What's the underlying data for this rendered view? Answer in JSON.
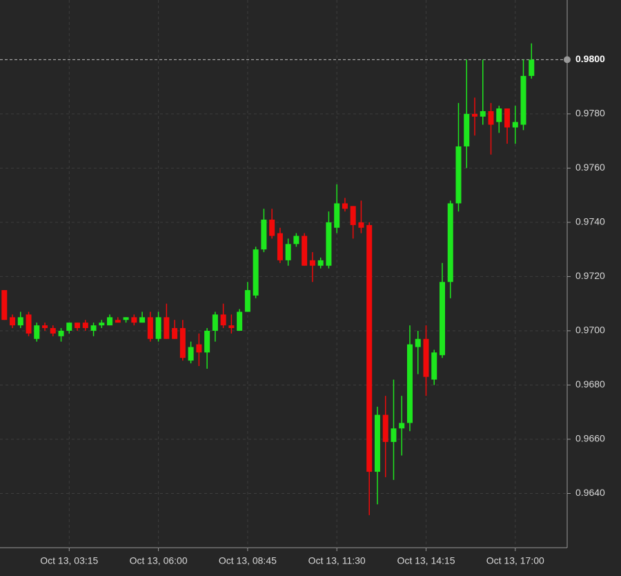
{
  "chart_data": {
    "type": "candlestick",
    "x": [
      "Oct 13, 01:15",
      "Oct 13, 01:30",
      "Oct 13, 01:45",
      "Oct 13, 02:00",
      "Oct 13, 02:15",
      "Oct 13, 02:30",
      "Oct 13, 02:45",
      "Oct 13, 03:00",
      "Oct 13, 03:15",
      "Oct 13, 03:30",
      "Oct 13, 03:45",
      "Oct 13, 04:00",
      "Oct 13, 04:15",
      "Oct 13, 04:30",
      "Oct 13, 04:45",
      "Oct 13, 05:00",
      "Oct 13, 05:15",
      "Oct 13, 05:30",
      "Oct 13, 05:45",
      "Oct 13, 06:00",
      "Oct 13, 06:15",
      "Oct 13, 06:30",
      "Oct 13, 06:45",
      "Oct 13, 07:00",
      "Oct 13, 07:15",
      "Oct 13, 07:30",
      "Oct 13, 07:45",
      "Oct 13, 08:00",
      "Oct 13, 08:15",
      "Oct 13, 08:30",
      "Oct 13, 08:45",
      "Oct 13, 09:00",
      "Oct 13, 09:15",
      "Oct 13, 09:30",
      "Oct 13, 09:45",
      "Oct 13, 10:00",
      "Oct 13, 10:15",
      "Oct 13, 10:30",
      "Oct 13, 10:45",
      "Oct 13, 11:00",
      "Oct 13, 11:15",
      "Oct 13, 11:30",
      "Oct 13, 11:45",
      "Oct 13, 12:00",
      "Oct 13, 12:15",
      "Oct 13, 12:30",
      "Oct 13, 12:45",
      "Oct 13, 13:00",
      "Oct 13, 13:15",
      "Oct 13, 13:30",
      "Oct 13, 13:45",
      "Oct 13, 14:00",
      "Oct 13, 14:15",
      "Oct 13, 14:30",
      "Oct 13, 14:45",
      "Oct 13, 15:00",
      "Oct 13, 15:15",
      "Oct 13, 15:30",
      "Oct 13, 15:45",
      "Oct 13, 16:00",
      "Oct 13, 16:15",
      "Oct 13, 16:30",
      "Oct 13, 16:45",
      "Oct 13, 17:00",
      "Oct 13, 17:15",
      "Oct 13, 17:30"
    ],
    "open": [
      0.9715,
      0.9705,
      0.9702,
      0.9706,
      0.9697,
      0.9702,
      0.9701,
      0.9698,
      0.97,
      0.9703,
      0.9703,
      0.97,
      0.9702,
      0.9702,
      0.9704,
      0.9704,
      0.9705,
      0.9703,
      0.9705,
      0.9697,
      0.9705,
      0.9701,
      0.9701,
      0.9689,
      0.9695,
      0.9692,
      0.97,
      0.9706,
      0.9702,
      0.97,
      0.9707,
      0.9713,
      0.973,
      0.9741,
      0.9736,
      0.9726,
      0.9732,
      0.9735,
      0.9726,
      0.9724,
      0.9724,
      0.9738,
      0.9747,
      0.9746,
      0.974,
      0.9739,
      0.9648,
      0.9669,
      0.9659,
      0.9664,
      0.9666,
      0.9694,
      0.9697,
      0.9682,
      0.9691,
      0.9718,
      0.9747,
      0.9768,
      0.978,
      0.9779,
      0.9781,
      0.9777,
      0.9782,
      0.9775,
      0.9776,
      0.9794
    ],
    "high": [
      0.9715,
      0.9706,
      0.9707,
      0.9707,
      0.9703,
      0.9703,
      0.9702,
      0.9701,
      0.9703,
      0.9703,
      0.9704,
      0.9703,
      0.9704,
      0.9706,
      0.9705,
      0.9705,
      0.9706,
      0.9707,
      0.9707,
      0.9707,
      0.971,
      0.9704,
      0.9704,
      0.9696,
      0.9699,
      0.9701,
      0.9707,
      0.971,
      0.9706,
      0.9708,
      0.9718,
      0.9731,
      0.9745,
      0.9745,
      0.9738,
      0.9734,
      0.9736,
      0.9736,
      0.9729,
      0.9727,
      0.9744,
      0.9754,
      0.9749,
      0.9746,
      0.9748,
      0.974,
      0.9672,
      0.9676,
      0.9682,
      0.9676,
      0.9702,
      0.97,
      0.9702,
      0.9693,
      0.9725,
      0.9748,
      0.9784,
      0.98,
      0.9786,
      0.98,
      0.9784,
      0.9783,
      0.9782,
      0.9783,
      0.98,
      0.9806
    ],
    "low": [
      0.9704,
      0.9701,
      0.9701,
      0.9698,
      0.9696,
      0.97,
      0.9698,
      0.9696,
      0.9699,
      0.97,
      0.97,
      0.9698,
      0.9701,
      0.9702,
      0.9703,
      0.9703,
      0.9702,
      0.9703,
      0.9696,
      0.9696,
      0.9697,
      0.9697,
      0.9689,
      0.9688,
      0.9687,
      0.9686,
      0.9696,
      0.9701,
      0.9699,
      0.97,
      0.9707,
      0.9712,
      0.9729,
      0.9734,
      0.9725,
      0.9724,
      0.9731,
      0.9724,
      0.9718,
      0.9723,
      0.9723,
      0.9736,
      0.9744,
      0.9734,
      0.9736,
      0.9632,
      0.9636,
      0.9646,
      0.9645,
      0.9654,
      0.9663,
      0.9684,
      0.9676,
      0.968,
      0.969,
      0.9712,
      0.9744,
      0.976,
      0.9772,
      0.9776,
      0.9765,
      0.9773,
      0.9769,
      0.9769,
      0.9774,
      0.9793
    ],
    "close": [
      0.9704,
      0.9702,
      0.9705,
      0.9699,
      0.9702,
      0.9701,
      0.9699,
      0.97,
      0.9703,
      0.9701,
      0.9701,
      0.9702,
      0.9703,
      0.9705,
      0.9703,
      0.9705,
      0.9703,
      0.9705,
      0.9697,
      0.9705,
      0.9697,
      0.9697,
      0.969,
      0.9694,
      0.9692,
      0.97,
      0.9706,
      0.9702,
      0.9701,
      0.9707,
      0.9715,
      0.973,
      0.9741,
      0.9735,
      0.9726,
      0.9732,
      0.9735,
      0.9724,
      0.9724,
      0.9726,
      0.974,
      0.9747,
      0.9745,
      0.9739,
      0.9738,
      0.9648,
      0.9669,
      0.9659,
      0.9664,
      0.9666,
      0.9695,
      0.9697,
      0.9683,
      0.9692,
      0.9718,
      0.9747,
      0.9768,
      0.978,
      0.9779,
      0.9781,
      0.9776,
      0.9782,
      0.9775,
      0.9777,
      0.9794,
      0.98
    ],
    "up_color": "#1ee61e",
    "down_color": "#f00a0a",
    "xlim": [
      "Oct 13, 01:07",
      "Oct 13, 18:36"
    ],
    "xticks": [
      "Oct 13, 03:15",
      "Oct 13, 06:00",
      "Oct 13, 08:45",
      "Oct 13, 11:30",
      "Oct 13, 14:15",
      "Oct 13, 17:00"
    ],
    "ylim": [
      0.962,
      0.9822
    ],
    "yticks": [
      {
        "value": 0.964,
        "label": "0.9640"
      },
      {
        "value": 0.966,
        "label": "0.9660"
      },
      {
        "value": 0.968,
        "label": "0.9680"
      },
      {
        "value": 0.97,
        "label": "0.9700"
      },
      {
        "value": 0.972,
        "label": "0.9720"
      },
      {
        "value": 0.974,
        "label": "0.9740"
      },
      {
        "value": 0.976,
        "label": "0.9760"
      },
      {
        "value": 0.978,
        "label": "0.9780"
      }
    ],
    "price_line": {
      "value": 0.98,
      "label": "0.9800"
    },
    "grid": true
  }
}
